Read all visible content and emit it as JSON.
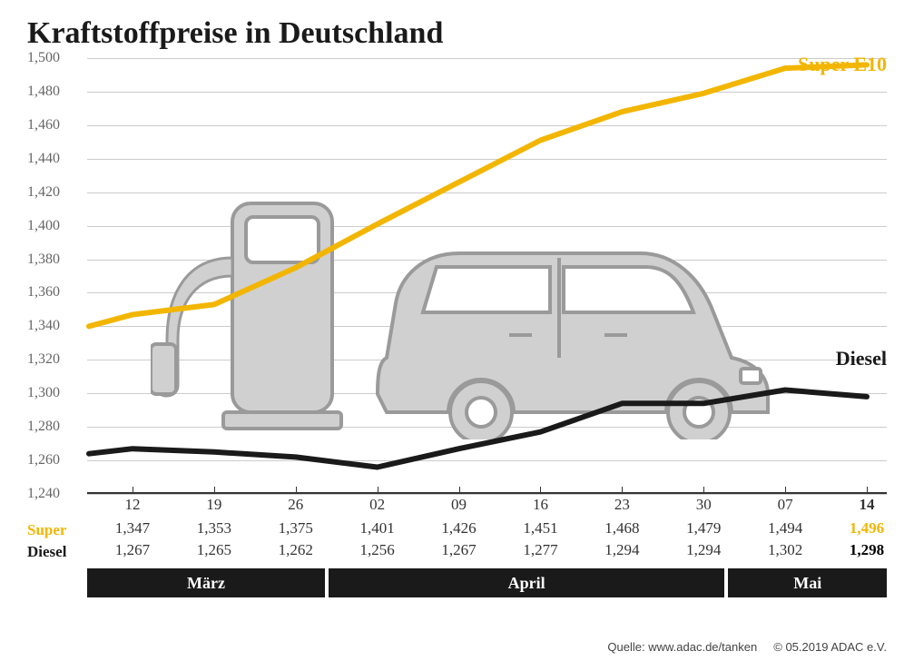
{
  "title": "Kraftstoffpreise in Deutschland",
  "chart": {
    "type": "line",
    "ylim": [
      1240,
      1500
    ],
    "ytick_step": 20,
    "y_labels": [
      "1,240",
      "1,260",
      "1,280",
      "1,300",
      "1,320",
      "1,340",
      "1,360",
      "1,380",
      "1,400",
      "1,420",
      "1,440",
      "1,460",
      "1,480",
      "1,500"
    ],
    "gridline_color": "#cccccc",
    "baseline_color": "#333333",
    "background_color": "#ffffff",
    "x_dates": [
      "12",
      "19",
      "26",
      "02",
      "09",
      "16",
      "23",
      "30",
      "07",
      "14"
    ],
    "x_highlight_index": 9,
    "series": {
      "super": {
        "label": "Super E10",
        "color": "#f2b600",
        "stroke_width": 6,
        "values": [
          1.34,
          1.347,
          1.353,
          1.375,
          1.401,
          1.426,
          1.451,
          1.468,
          1.479,
          1.494,
          1.496
        ],
        "display_values": [
          "1,347",
          "1,353",
          "1,375",
          "1,401",
          "1,426",
          "1,451",
          "1,468",
          "1,479",
          "1,494",
          "1,496"
        ]
      },
      "diesel": {
        "label": "Diesel",
        "color": "#1a1a1a",
        "stroke_width": 6,
        "values": [
          1.264,
          1.267,
          1.265,
          1.262,
          1.256,
          1.267,
          1.277,
          1.294,
          1.294,
          1.302,
          1.298
        ],
        "display_values": [
          "1,267",
          "1,265",
          "1,262",
          "1,256",
          "1,267",
          "1,277",
          "1,294",
          "1,294",
          "1,302",
          "1,298"
        ]
      }
    },
    "row_labels": {
      "super": "Super",
      "diesel": "Diesel"
    },
    "months": [
      {
        "label": "März",
        "span": 3
      },
      {
        "label": "April",
        "span": 5
      },
      {
        "label": "Mai",
        "span": 2
      }
    ],
    "illustration": {
      "fill": "#d0d0d0",
      "stroke": "#888888"
    }
  },
  "footer": {
    "source": "Quelle: www.adac.de/tanken",
    "copyright": "© 05.2019  ADAC e.V."
  }
}
